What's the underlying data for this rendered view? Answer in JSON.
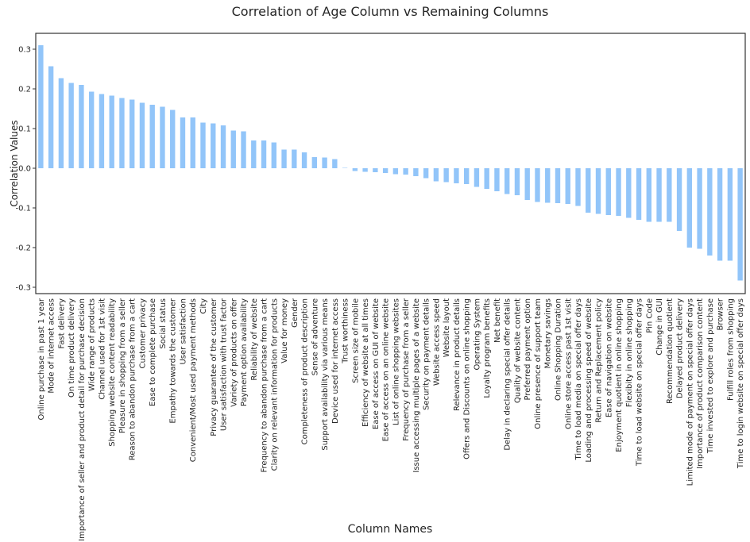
{
  "chart_data": {
    "type": "bar",
    "title": "Correlation of Age Column vs Remaining Columns",
    "x_label": "Column Names",
    "y_label": "Correlation Values",
    "color": "#92c5f9",
    "ylim": [
      -0.316,
      0.34
    ],
    "yticks": [
      -0.3,
      -0.2,
      -0.1,
      {
        "value": 0,
        "label": "0.0"
      },
      0.1,
      0.2,
      0.3
    ],
    "categories": [
      "Online purchase in past 1 year",
      "Mode of internet access",
      "Fast delivery",
      "On time product delivery",
      "Importance of seller and product detail for purchase decision",
      "Wide range of products",
      "Channel used for 1st visit",
      "Shopping website content readability",
      "Pleasure in shopping from a seller",
      "Reason to abandon purchase from a cart",
      "Customer privacy",
      "Ease to complete purchase",
      "Social status",
      "Empathy towards the customer",
      "User satisfaction",
      "Convenient/Most used payment methods",
      "City",
      "Privacy guarantee of the customer",
      "User satisfaction with trust factor",
      "Variety of products on offer",
      "Payment option availability",
      "Reliability of website",
      "Frequency to abandon purchase from a cart",
      "Clarity on relevant information for products",
      "Value for money",
      "Gender",
      "Completeness of product description",
      "Sense of adventure",
      "Support availability via various means",
      "Device used for internet access",
      "Trust worthiness",
      "Screen size of mobile",
      "Efficiency of website at all times",
      "Ease of access on GUI of website",
      "Ease of access on an online website",
      "List of online shopping websites",
      "Frequency of purchase from a seller",
      "Issue accessing multiple pages of a website",
      "Security on payment details",
      "Website access speed",
      "Website layout",
      "Relevance in product details",
      "Offers and Discounts on online shopping",
      "Operating System",
      "Loyalty program benefits",
      "Net benefit",
      "Delay in declaring special offer details",
      "Quality of website content",
      "Preferred payment option",
      "Online presence of support team",
      "Monetary savings",
      "Online Shopping Duration",
      "Online store access past 1st visit",
      "Time to load media on special offer days",
      "Loading and processing speed of website",
      "Return and Replacement policy",
      "Ease of navigation on website",
      "Enjoyment quotient in online shopping",
      "Flexibity in online shopping",
      "Time to load website on special offer days",
      "Pin Code",
      "Change in GUI",
      "Recommendation quotient",
      "Delayed product delivery",
      "Limited mode of payment on special offer days",
      "Importance of product comparison content",
      "Time invested to explore and purchase",
      "Browser",
      "Fulfill roles from shopping",
      "Time to login website on special offer days"
    ],
    "values": [
      0.31,
      0.257,
      0.227,
      0.215,
      0.21,
      0.193,
      0.187,
      0.183,
      0.177,
      0.173,
      0.165,
      0.16,
      0.155,
      0.147,
      0.128,
      0.128,
      0.115,
      0.113,
      0.108,
      0.095,
      0.093,
      0.07,
      0.07,
      0.065,
      0.047,
      0.047,
      0.04,
      0.028,
      0.027,
      0.023,
      0.001,
      -0.007,
      -0.009,
      -0.01,
      -0.012,
      -0.015,
      -0.016,
      -0.02,
      -0.025,
      -0.033,
      -0.035,
      -0.038,
      -0.04,
      -0.047,
      -0.052,
      -0.058,
      -0.065,
      -0.068,
      -0.08,
      -0.085,
      -0.087,
      -0.088,
      -0.09,
      -0.095,
      -0.112,
      -0.115,
      -0.118,
      -0.12,
      -0.125,
      -0.13,
      -0.135,
      -0.135,
      -0.135,
      -0.158,
      -0.2,
      -0.203,
      -0.22,
      -0.233,
      -0.233,
      -0.283
    ]
  }
}
